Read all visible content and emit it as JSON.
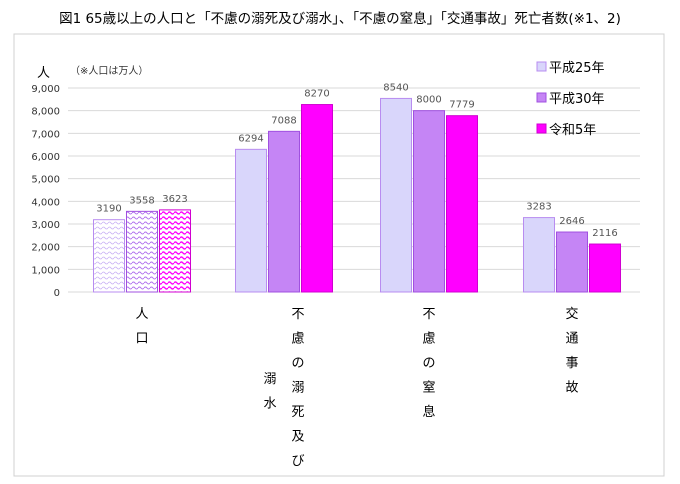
{
  "chart_data": {
    "type": "bar",
    "title": "図1 65歳以上の人口と「不慮の溺死及び溺水」、「不慮の窒息」「交通事故」死亡者数(※1、2)",
    "ylabel": "人",
    "note": "（※人口は万人）",
    "ylim": [
      0,
      9000
    ],
    "yticks": [
      "0",
      "1,000",
      "2,000",
      "3,000",
      "4,000",
      "5,000",
      "6,000",
      "7,000",
      "8,000",
      "9,000"
    ],
    "grid": true,
    "legend_position": "top-right",
    "categories": [
      "人口",
      "不慮の溺死及び溺水",
      "不慮の窒息",
      "交通事故"
    ],
    "category_lines": [
      [
        "人口"
      ],
      [
        "不慮の溺死及び",
        "溺水"
      ],
      [
        "不慮の窒息"
      ],
      [
        "交通事故"
      ]
    ],
    "series": [
      {
        "name": "平成25年",
        "values": [
          3190,
          6294,
          8540,
          3283
        ],
        "fill": "#d9d6fb",
        "stroke": "#b88cf0"
      },
      {
        "name": "平成30年",
        "values": [
          3558,
          7088,
          8000,
          2646
        ],
        "fill": "#c585f5",
        "stroke": "#a050e0"
      },
      {
        "name": "令和5年",
        "values": [
          3623,
          8270,
          7779,
          2116
        ],
        "fill": "#ff00ff",
        "stroke": "#d000d0"
      }
    ]
  }
}
